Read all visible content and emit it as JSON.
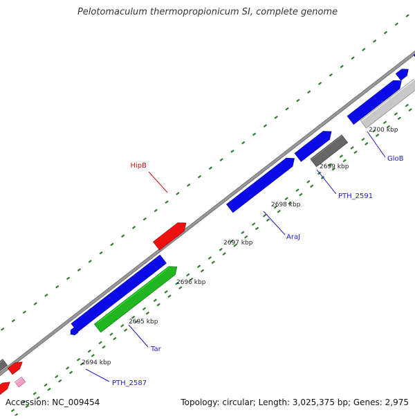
{
  "title": "Pelotomaculum thermopropionicum SI, complete genome",
  "footer": {
    "accession": "Accession: NC_009454",
    "summary": "Topology: circular; Length: 3,025,375 bp; Genes: 2,975"
  },
  "colors": {
    "backbone": "#999999",
    "tick": "#2e7d2e",
    "blue_gene": "#0a0ae6",
    "green_gene": "#22b522",
    "red_gene": "#ee1111",
    "gray_gene": "#666666",
    "light_gray_gene": "#c8c8c8",
    "steel_blue_gene": "#4a82b4",
    "pink_gene": "#f4a0c8",
    "label_blue": "#1a1acc",
    "label_red": "#cc1111"
  },
  "tick_labels": [
    "2694 kbp",
    "2695 kbp",
    "2696 kbp",
    "2697 kbp",
    "2698 kbp",
    "2699 kbp",
    "2700 kbp"
  ],
  "gene_labels": [
    {
      "text": "PTH_2587",
      "color": "label_blue"
    },
    {
      "text": "Tar",
      "color": "label_blue"
    },
    {
      "text": "AraJ",
      "color": "label_blue"
    },
    {
      "text": "PTH_2591",
      "color": "label_blue"
    },
    {
      "text": "GloB",
      "color": "label_blue"
    },
    {
      "text": "HipB",
      "color": "label_red"
    }
  ]
}
